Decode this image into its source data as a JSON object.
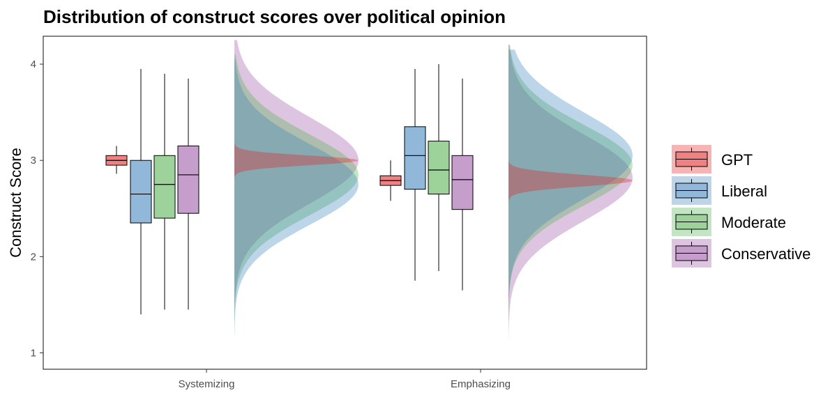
{
  "chart_data": {
    "type": "raincloud",
    "title": "Distribution of construct scores over political opinion",
    "xlabel": "",
    "ylabel": "Construct Score",
    "ylim": [
      0.83,
      4.29
    ],
    "yticks": [
      1,
      2,
      3,
      4
    ],
    "grid": false,
    "legend_position": "right",
    "categories": [
      "Systemizing",
      "Emphasizing"
    ],
    "series": [
      {
        "name": "GPT",
        "color": "#E41A1C",
        "box": [
          {
            "min": 2.86,
            "q1": 2.95,
            "median": 3.0,
            "q3": 3.05,
            "max": 3.15
          },
          {
            "min": 2.58,
            "q1": 2.74,
            "median": 2.79,
            "q3": 2.84,
            "max": 3.0
          }
        ],
        "density": [
          {
            "mean": 3.0,
            "sd": 0.05,
            "min": 2.6,
            "max": 3.45
          },
          {
            "mean": 2.79,
            "sd": 0.06,
            "min": 2.5,
            "max": 3.1
          }
        ]
      },
      {
        "name": "Liberal",
        "color": "#377EB8",
        "box": [
          {
            "min": 1.4,
            "q1": 2.35,
            "median": 2.65,
            "q3": 3.0,
            "max": 3.95
          },
          {
            "min": 1.75,
            "q1": 2.7,
            "median": 3.05,
            "q3": 3.35,
            "max": 3.95
          }
        ],
        "density": [
          {
            "mean": 2.75,
            "sd": 0.42,
            "min": 1.2,
            "max": 4.05
          },
          {
            "mean": 3.05,
            "sd": 0.45,
            "min": 1.25,
            "max": 4.15
          }
        ]
      },
      {
        "name": "Moderate",
        "color": "#4DAF4A",
        "box": [
          {
            "min": 1.45,
            "q1": 2.4,
            "median": 2.75,
            "q3": 3.05,
            "max": 3.9
          },
          {
            "min": 1.85,
            "q1": 2.65,
            "median": 2.9,
            "q3": 3.2,
            "max": 4.0
          }
        ],
        "density": [
          {
            "mean": 2.85,
            "sd": 0.42,
            "min": 1.15,
            "max": 4.1
          },
          {
            "mean": 2.95,
            "sd": 0.42,
            "min": 1.3,
            "max": 4.2
          }
        ]
      },
      {
        "name": "Conservative",
        "color": "#984EA3",
        "box": [
          {
            "min": 1.45,
            "q1": 2.45,
            "median": 2.85,
            "q3": 3.15,
            "max": 3.85
          },
          {
            "min": 1.65,
            "q1": 2.49,
            "median": 2.8,
            "q3": 3.05,
            "max": 3.85
          }
        ],
        "density": [
          {
            "mean": 3.0,
            "sd": 0.45,
            "min": 1.05,
            "max": 4.25
          },
          {
            "mean": 2.82,
            "sd": 0.45,
            "min": 1.15,
            "max": 4.2
          }
        ]
      }
    ]
  }
}
